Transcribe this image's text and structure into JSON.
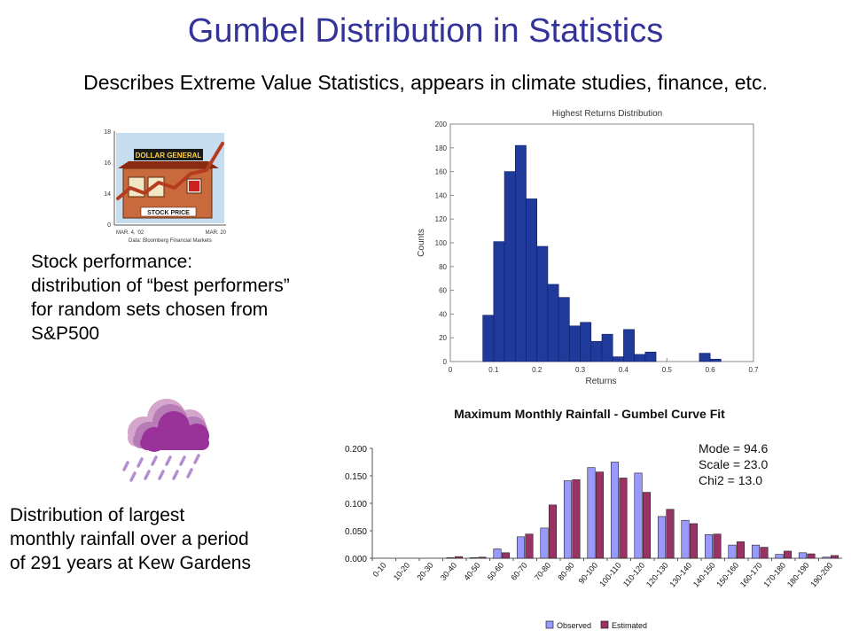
{
  "slide": {
    "title": "Gumbel Distribution in Statistics",
    "subtitle": "Describes Extreme Value Statistics, appears in climate studies, finance, etc.",
    "stock_caption": [
      "Stock performance:",
      "distribution of “best performers”",
      "for random sets chosen from",
      "S&P500"
    ],
    "rain_caption": [
      "Distribution of largest",
      "monthly rainfall over a period",
      "of 291 years at Kew Gardens"
    ]
  },
  "stock_illustration": {
    "y_ticks": [
      "18",
      "16",
      "14",
      "0"
    ],
    "sign_text": "DOLLAR GENERAL",
    "store_text": "STOCK PRICE",
    "date_left": "MAR. 4, '02",
    "date_right": "MAR. 20",
    "source": "Data: Bloomberg Financial Markets"
  },
  "colors": {
    "title": "#333399",
    "hist_bar": "#1f3a9a",
    "observed": "#9999ff",
    "estimated": "#993366",
    "cloud": "#993399",
    "rain": "#b38fd1"
  },
  "icons": [
    "cloud-icon",
    "rain-drops-icon"
  ],
  "chart_data": [
    {
      "type": "bar",
      "title": "Highest Returns Distribution",
      "xlabel": "Returns",
      "ylabel": "Counts",
      "xlim": [
        0,
        0.7
      ],
      "ylim": [
        0,
        200
      ],
      "x_ticks": [
        "0",
        "0.1",
        "0.2",
        "0.3",
        "0.4",
        "0.5",
        "0.6",
        "0.7"
      ],
      "y_ticks": [
        "0",
        "20",
        "40",
        "60",
        "80",
        "100",
        "120",
        "140",
        "160",
        "180",
        "200"
      ],
      "bin_width": 0.025,
      "bin_starts": [
        0.075,
        0.1,
        0.125,
        0.15,
        0.175,
        0.2,
        0.225,
        0.25,
        0.275,
        0.3,
        0.325,
        0.35,
        0.375,
        0.4,
        0.425,
        0.45,
        0.475,
        0.5,
        0.525,
        0.55,
        0.575,
        0.6
      ],
      "values": [
        39,
        101,
        160,
        182,
        137,
        97,
        65,
        54,
        30,
        33,
        17,
        23,
        4,
        27,
        6,
        8,
        0,
        0,
        0,
        0,
        7,
        2
      ],
      "grid": false
    },
    {
      "type": "bar",
      "title": "Maximum Monthly Rainfall - Gumbel Curve Fit",
      "categories": [
        "0-10",
        "10-20",
        "20-30",
        "30-40",
        "40-50",
        "50-60",
        "60-70",
        "70-80",
        "80-90",
        "90-100",
        "100-110",
        "110-120",
        "120-130",
        "130-140",
        "140-150",
        "150-160",
        "160-170",
        "170-180",
        "180-190",
        "190-200"
      ],
      "y_ticks": [
        "0.000",
        "0.050",
        "0.100",
        "0.150",
        "0.200"
      ],
      "ylim": [
        0,
        0.2
      ],
      "series": [
        {
          "name": "Observed",
          "values": [
            0,
            0,
            0,
            0.001,
            0.001,
            0.017,
            0.039,
            0.055,
            0.141,
            0.165,
            0.175,
            0.155,
            0.076,
            0.069,
            0.043,
            0.024,
            0.024,
            0.007,
            0.01,
            0.002
          ]
        },
        {
          "name": "Estimated",
          "values": [
            0,
            0,
            0,
            0.003,
            0.002,
            0.01,
            0.044,
            0.097,
            0.143,
            0.157,
            0.146,
            0.12,
            0.089,
            0.063,
            0.044,
            0.03,
            0.02,
            0.013,
            0.008,
            0.005
          ]
        }
      ],
      "stats": [
        "Mode = 94.6",
        "Scale = 23.0",
        "Chi2 =  13.0"
      ],
      "legend": "bottom-right",
      "grid": false
    }
  ]
}
